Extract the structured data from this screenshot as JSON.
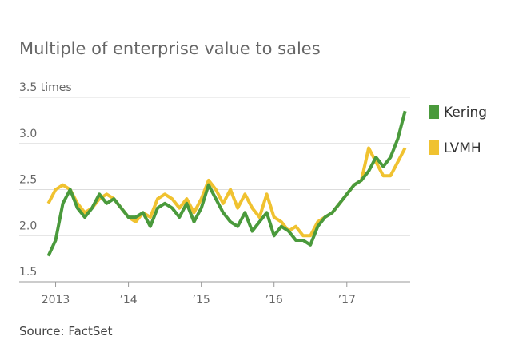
{
  "chart_data": {
    "type": "line",
    "title": "Multiple of enterprise value to sales",
    "source": "Source: FactSet",
    "x": [
      2012.9,
      2013.0,
      2013.1,
      2013.2,
      2013.3,
      2013.4,
      2013.5,
      2013.6,
      2013.7,
      2013.8,
      2013.9,
      2014.0,
      2014.1,
      2014.2,
      2014.3,
      2014.4,
      2014.5,
      2014.6,
      2014.7,
      2014.8,
      2014.9,
      2015.0,
      2015.1,
      2015.2,
      2015.3,
      2015.4,
      2015.5,
      2015.6,
      2015.7,
      2015.8,
      2015.9,
      2016.0,
      2016.1,
      2016.2,
      2016.3,
      2016.4,
      2016.5,
      2016.6,
      2016.7,
      2016.8,
      2016.9,
      2017.0,
      2017.1,
      2017.2,
      2017.3,
      2017.4,
      2017.5,
      2017.6,
      2017.7,
      2017.8
    ],
    "series": [
      {
        "name": "Kering",
        "color": "#4a9a3c",
        "values": [
          1.78,
          1.95,
          2.35,
          2.5,
          2.3,
          2.2,
          2.3,
          2.45,
          2.35,
          2.4,
          2.3,
          2.2,
          2.2,
          2.25,
          2.1,
          2.3,
          2.35,
          2.3,
          2.2,
          2.35,
          2.15,
          2.3,
          2.55,
          2.4,
          2.25,
          2.15,
          2.1,
          2.25,
          2.05,
          2.15,
          2.25,
          2.0,
          2.1,
          2.05,
          1.95,
          1.95,
          1.9,
          2.1,
          2.2,
          2.25,
          2.35,
          2.45,
          2.55,
          2.6,
          2.7,
          2.85,
          2.75,
          2.85,
          3.05,
          3.35
        ]
      },
      {
        "name": "LVMH",
        "color": "#f0c230",
        "values": [
          2.35,
          2.5,
          2.55,
          2.5,
          2.35,
          2.25,
          2.3,
          2.4,
          2.45,
          2.4,
          2.3,
          2.2,
          2.15,
          2.25,
          2.2,
          2.4,
          2.45,
          2.4,
          2.3,
          2.4,
          2.25,
          2.4,
          2.6,
          2.5,
          2.35,
          2.5,
          2.3,
          2.45,
          2.3,
          2.2,
          2.45,
          2.2,
          2.15,
          2.05,
          2.1,
          2.0,
          2.0,
          2.15,
          2.2,
          2.25,
          2.35,
          2.45,
          2.55,
          2.6,
          2.95,
          2.8,
          2.65,
          2.65,
          2.8,
          2.95
        ]
      }
    ],
    "xlim": [
      2012.5,
      2017.87
    ],
    "xticks": [
      {
        "value": 2013,
        "label": "2013"
      },
      {
        "value": 2014,
        "label": "’14"
      },
      {
        "value": 2015,
        "label": "’15"
      },
      {
        "value": 2016,
        "label": "’16"
      },
      {
        "value": 2017,
        "label": "’17"
      }
    ],
    "ylim": [
      1.5,
      3.5
    ],
    "yticks": [
      1.5,
      {
        "value": 2,
        "label": "2.0"
      },
      2.5,
      {
        "value": 3,
        "label": "3.0"
      },
      {
        "value": 3.5,
        "label": "3.5 times"
      }
    ],
    "grid": true,
    "legend": "right"
  }
}
